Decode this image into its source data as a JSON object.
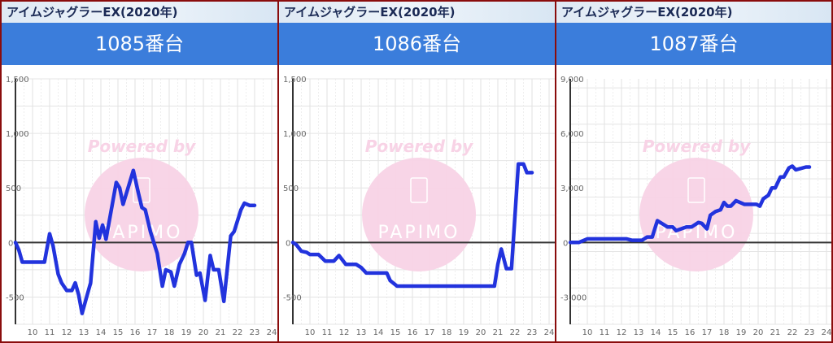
{
  "watermark": {
    "powered_by": "Powered by",
    "logo": "PAPIMO"
  },
  "colors": {
    "line": "#2233dd",
    "header": "#3b7ddb",
    "border": "#8a0c0c",
    "watermark": "#f8d3e6"
  },
  "panels": [
    {
      "model": "アイムジャグラーEX(2020年)",
      "machine": "1085番台"
    },
    {
      "model": "アイムジャグラーEX(2020年)",
      "machine": "1086番台"
    },
    {
      "model": "アイムジャグラーEX(2020年)",
      "machine": "1087番台"
    }
  ],
  "chart_data": [
    {
      "type": "line",
      "x_ticks": [
        "10",
        "11",
        "12",
        "13",
        "14",
        "15",
        "16",
        "17",
        "18",
        "19",
        "20",
        "21",
        "22",
        "23",
        "24"
      ],
      "xlim": [
        9,
        24.4
      ],
      "y_ticks": [
        {
          "v": 1500,
          "label": "1,500"
        },
        {
          "v": 1000,
          "label": "1,000"
        },
        {
          "v": 500,
          "label": "500"
        },
        {
          "v": 0,
          "label": "0"
        },
        {
          "v": -500,
          "label": "-500"
        }
      ],
      "ylim": [
        -750,
        1500
      ],
      "y_minor": 250,
      "grid": true,
      "x": [
        9,
        9.2,
        9.4,
        10.7,
        11.0,
        11.2,
        11.5,
        11.7,
        12.0,
        12.3,
        12.5,
        12.7,
        12.9,
        13.2,
        13.4,
        13.7,
        13.9,
        14.1,
        14.3,
        14.9,
        15.1,
        15.3,
        15.9,
        16.2,
        16.4,
        16.6,
        16.9,
        17.3,
        17.6,
        17.8,
        18.1,
        18.3,
        18.6,
        18.9,
        19.1,
        19.3,
        19.6,
        19.8,
        20.1,
        20.4,
        20.6,
        20.9,
        21.2,
        21.6,
        21.8,
        22.2,
        22.4,
        22.7,
        23.0
      ],
      "y": [
        0,
        -70,
        -180,
        -180,
        80,
        -30,
        -290,
        -370,
        -440,
        -440,
        -370,
        -480,
        -650,
        -480,
        -370,
        190,
        40,
        160,
        30,
        550,
        500,
        350,
        660,
        450,
        320,
        300,
        100,
        -100,
        -400,
        -250,
        -270,
        -400,
        -200,
        -100,
        0,
        0,
        -300,
        -280,
        -530,
        -120,
        -250,
        -250,
        -540,
        60,
        100,
        300,
        360,
        340,
        340
      ]
    },
    {
      "type": "line",
      "x_ticks": [
        "10",
        "11",
        "12",
        "13",
        "14",
        "15",
        "16",
        "17",
        "18",
        "19",
        "20",
        "21",
        "22",
        "23",
        "24"
      ],
      "xlim": [
        9,
        24.4
      ],
      "y_ticks": [
        {
          "v": 1500,
          "label": "1,500"
        },
        {
          "v": 1000,
          "label": "1,000"
        },
        {
          "v": 500,
          "label": "500"
        },
        {
          "v": 0,
          "label": "0"
        },
        {
          "v": -500,
          "label": "-500"
        }
      ],
      "ylim": [
        -750,
        1500
      ],
      "y_minor": 250,
      "grid": true,
      "x": [
        9,
        9.2,
        9.5,
        9.8,
        10.0,
        10.5,
        10.9,
        11.4,
        11.7,
        12.1,
        12.7,
        13.0,
        13.3,
        14.5,
        14.7,
        15.1,
        20.8,
        21.0,
        21.2,
        21.5,
        21.8,
        22.2,
        22.5,
        22.7,
        23.0
      ],
      "y": [
        0,
        -20,
        -80,
        -90,
        -110,
        -110,
        -170,
        -170,
        -120,
        -200,
        -200,
        -230,
        -280,
        -280,
        -350,
        -400,
        -400,
        -200,
        -60,
        -240,
        -240,
        720,
        720,
        640,
        640
      ]
    },
    {
      "type": "line",
      "x_ticks": [
        "10",
        "11",
        "12",
        "13",
        "14",
        "15",
        "16",
        "17",
        "18",
        "19",
        "20",
        "21",
        "22",
        "23",
        "24"
      ],
      "xlim": [
        9,
        24.4
      ],
      "y_ticks": [
        {
          "v": 9000,
          "label": "9,000"
        },
        {
          "v": 6000,
          "label": "6,000"
        },
        {
          "v": 3000,
          "label": "3,000"
        },
        {
          "v": 0,
          "label": "0"
        },
        {
          "v": -3000,
          "label": "-3,000"
        }
      ],
      "ylim": [
        -4500,
        9000
      ],
      "y_minor": 1000,
      "grid": true,
      "x": [
        9,
        9.5,
        10,
        12.3,
        12.6,
        13.2,
        13.5,
        13.8,
        14.1,
        14.7,
        15.0,
        15.2,
        15.8,
        16.1,
        16.5,
        16.7,
        17.0,
        17.2,
        17.5,
        17.8,
        18.0,
        18.2,
        18.4,
        18.7,
        19.2,
        19.9,
        20.1,
        20.3,
        20.6,
        20.8,
        21.0,
        21.3,
        21.5,
        21.8,
        22.0,
        22.2,
        22.8,
        23.0
      ],
      "y": [
        0,
        0,
        200,
        200,
        120,
        120,
        300,
        300,
        1200,
        850,
        850,
        650,
        850,
        850,
        1100,
        1050,
        750,
        1500,
        1700,
        1800,
        2200,
        2000,
        2000,
        2300,
        2100,
        2100,
        2000,
        2400,
        2600,
        3000,
        3000,
        3600,
        3600,
        4100,
        4200,
        4000,
        4150,
        4150
      ]
    }
  ]
}
